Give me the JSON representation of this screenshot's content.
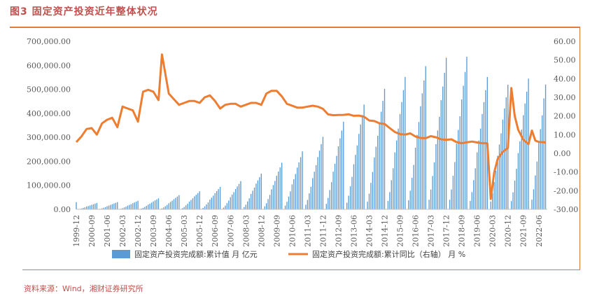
{
  "figure_title": "图3 固定资产投资近年整体状况",
  "source_note": "资料来源：Wind，湘财证券研究所",
  "colors": {
    "bar": "#5b9bd5",
    "line": "#ed7d31",
    "accent": "#e07b39",
    "title": "#c0504d"
  },
  "chart_data": {
    "type": "bar+line",
    "left_axis": {
      "ylim": [
        0,
        700000
      ],
      "ticks": [
        "0.00",
        "100,000.00",
        "200,000.00",
        "300,000.00",
        "400,000.00",
        "500,000.00",
        "600,000.00",
        "700,000.00"
      ]
    },
    "right_axis": {
      "ylim": [
        -30,
        60
      ],
      "ticks": [
        "-30.00",
        "-20.00",
        "-10.00",
        "0.00",
        "10.00",
        "20.00",
        "30.00",
        "40.00",
        "50.00",
        "60.00"
      ]
    },
    "x_tick_labels": [
      "1999-12",
      "2000-09",
      "2001-06",
      "2002-03",
      "2002-12",
      "2003-09",
      "2004-06",
      "2005-03",
      "2005-12",
      "2006-09",
      "2007-06",
      "2008-03",
      "2008-12",
      "2009-09",
      "2010-06",
      "2011-03",
      "2011-12",
      "2012-09",
      "2013-06",
      "2014-03",
      "2014-12",
      "2015-09",
      "2016-06",
      "2017-03",
      "2017-12",
      "2018-09",
      "2019-06",
      "2020-03",
      "2020-12",
      "2021-09",
      "2022-06"
    ],
    "grid": false,
    "legend_position": "bottom",
    "series": [
      {
        "name": "固定资产投资完成额:累计值 月 亿元",
        "type": "bar",
        "axis": "left",
        "annual_totals": [
          {
            "year": 1999,
            "value": 29855
          },
          {
            "year": 2000,
            "value": 26222
          },
          {
            "year": 2001,
            "value": 30000
          },
          {
            "year": 2002,
            "value": 35489
          },
          {
            "year": 2003,
            "value": 45812
          },
          {
            "year": 2004,
            "value": 59028
          },
          {
            "year": 2005,
            "value": 75095
          },
          {
            "year": 2006,
            "value": 93369
          },
          {
            "year": 2007,
            "value": 117464
          },
          {
            "year": 2008,
            "value": 148738
          },
          {
            "year": 2009,
            "value": 194139
          },
          {
            "year": 2010,
            "value": 241415
          },
          {
            "year": 2011,
            "value": 301933
          },
          {
            "year": 2012,
            "value": 364854
          },
          {
            "year": 2013,
            "value": 436528
          },
          {
            "year": 2014,
            "value": 502005
          },
          {
            "year": 2015,
            "value": 551590
          },
          {
            "year": 2016,
            "value": 596501
          },
          {
            "year": 2017,
            "value": 631684
          },
          {
            "year": 2018,
            "value": 635636
          },
          {
            "year": 2019,
            "value": 551478
          },
          {
            "year": 2020,
            "value": 518907
          },
          {
            "year": 2021,
            "value": 544547
          },
          {
            "year": 2022,
            "value": 520000
          }
        ]
      },
      {
        "name": "固定资产投资完成额:累计同比（右轴） 月 %",
        "type": "line",
        "axis": "right",
        "points": [
          [
            "1999-12",
            6.0
          ],
          [
            "2000-03",
            9.0
          ],
          [
            "2000-06",
            13.0
          ],
          [
            "2000-09",
            13.5
          ],
          [
            "2000-12",
            10.0
          ],
          [
            "2001-03",
            16.0
          ],
          [
            "2001-06",
            18.0
          ],
          [
            "2001-09",
            19.0
          ],
          [
            "2001-12",
            14.0
          ],
          [
            "2002-03",
            25.0
          ],
          [
            "2002-06",
            24.0
          ],
          [
            "2002-09",
            23.0
          ],
          [
            "2002-12",
            17.0
          ],
          [
            "2003-03",
            33.0
          ],
          [
            "2003-06",
            34.0
          ],
          [
            "2003-09",
            33.0
          ],
          [
            "2003-12",
            28.5
          ],
          [
            "2004-02",
            53.0
          ],
          [
            "2004-06",
            32.0
          ],
          [
            "2004-09",
            29.0
          ],
          [
            "2004-12",
            26.0
          ],
          [
            "2005-03",
            27.0
          ],
          [
            "2005-06",
            28.0
          ],
          [
            "2005-09",
            28.0
          ],
          [
            "2005-12",
            27.0
          ],
          [
            "2006-03",
            30.0
          ],
          [
            "2006-06",
            31.0
          ],
          [
            "2006-09",
            28.0
          ],
          [
            "2006-12",
            24.0
          ],
          [
            "2007-03",
            26.0
          ],
          [
            "2007-06",
            26.5
          ],
          [
            "2007-09",
            26.5
          ],
          [
            "2007-12",
            25.0
          ],
          [
            "2008-03",
            26.0
          ],
          [
            "2008-06",
            27.0
          ],
          [
            "2008-09",
            27.0
          ],
          [
            "2008-12",
            26.0
          ],
          [
            "2009-03",
            32.0
          ],
          [
            "2009-06",
            33.5
          ],
          [
            "2009-09",
            33.5
          ],
          [
            "2009-12",
            30.5
          ],
          [
            "2010-03",
            26.5
          ],
          [
            "2010-06",
            25.5
          ],
          [
            "2010-09",
            24.5
          ],
          [
            "2010-12",
            24.5
          ],
          [
            "2011-03",
            25.0
          ],
          [
            "2011-06",
            25.5
          ],
          [
            "2011-09",
            25.0
          ],
          [
            "2011-12",
            23.8
          ],
          [
            "2012-03",
            20.9
          ],
          [
            "2012-06",
            20.4
          ],
          [
            "2012-09",
            20.5
          ],
          [
            "2012-12",
            20.6
          ],
          [
            "2013-03",
            20.9
          ],
          [
            "2013-06",
            20.1
          ],
          [
            "2013-09",
            20.2
          ],
          [
            "2013-12",
            19.6
          ],
          [
            "2014-03",
            17.6
          ],
          [
            "2014-06",
            17.3
          ],
          [
            "2014-09",
            16.1
          ],
          [
            "2014-12",
            15.7
          ],
          [
            "2015-03",
            13.5
          ],
          [
            "2015-06",
            11.4
          ],
          [
            "2015-09",
            10.3
          ],
          [
            "2015-12",
            10.0
          ],
          [
            "2016-03",
            10.7
          ],
          [
            "2016-06",
            9.0
          ],
          [
            "2016-09",
            8.2
          ],
          [
            "2016-12",
            8.1
          ],
          [
            "2017-03",
            9.2
          ],
          [
            "2017-06",
            8.6
          ],
          [
            "2017-09",
            7.5
          ],
          [
            "2017-12",
            7.2
          ],
          [
            "2018-03",
            7.5
          ],
          [
            "2018-06",
            6.0
          ],
          [
            "2018-09",
            5.4
          ],
          [
            "2018-12",
            5.9
          ],
          [
            "2019-03",
            6.3
          ],
          [
            "2019-06",
            5.8
          ],
          [
            "2019-09",
            5.4
          ],
          [
            "2019-12",
            5.4
          ],
          [
            "2020-02",
            -24.5
          ],
          [
            "2020-04",
            -10.3
          ],
          [
            "2020-06",
            -3.1
          ],
          [
            "2020-09",
            0.8
          ],
          [
            "2020-12",
            2.9
          ],
          [
            "2021-02",
            35.0
          ],
          [
            "2021-04",
            19.9
          ],
          [
            "2021-06",
            12.6
          ],
          [
            "2021-09",
            7.3
          ],
          [
            "2021-12",
            4.9
          ],
          [
            "2022-02",
            12.2
          ],
          [
            "2022-04",
            6.8
          ],
          [
            "2022-06",
            6.1
          ],
          [
            "2022-09",
            5.9
          ],
          [
            "2022-10",
            5.8
          ]
        ]
      }
    ]
  }
}
